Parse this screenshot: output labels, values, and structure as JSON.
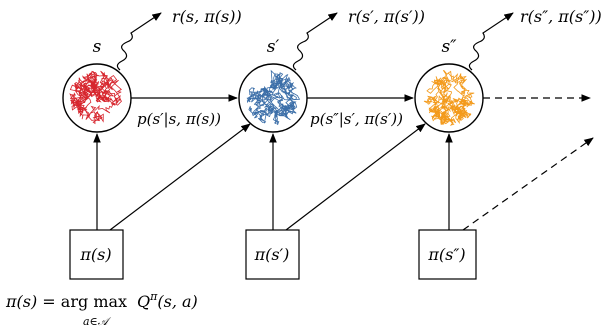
{
  "states": [
    {
      "label": "s",
      "color": "#d7262e"
    },
    {
      "label": "s′",
      "color": "#3b6ea8"
    },
    {
      "label": "s″",
      "color": "#f39a1b"
    }
  ],
  "rewards": [
    "r(s, π(s))",
    "r(s′, π(s′))",
    "r(s″, π(s″))"
  ],
  "transitions": [
    "p(s′|s, π(s))",
    "p(s″|s′, π(s′))"
  ],
  "policies": [
    "π(s)",
    "π(s′)",
    "π(s″)"
  ],
  "formula": {
    "lhs": "π(s) = ",
    "op": "arg max",
    "sub": "a∈𝒜",
    "rhs": "Q",
    "sup": "π",
    "args": "(s, a)"
  }
}
